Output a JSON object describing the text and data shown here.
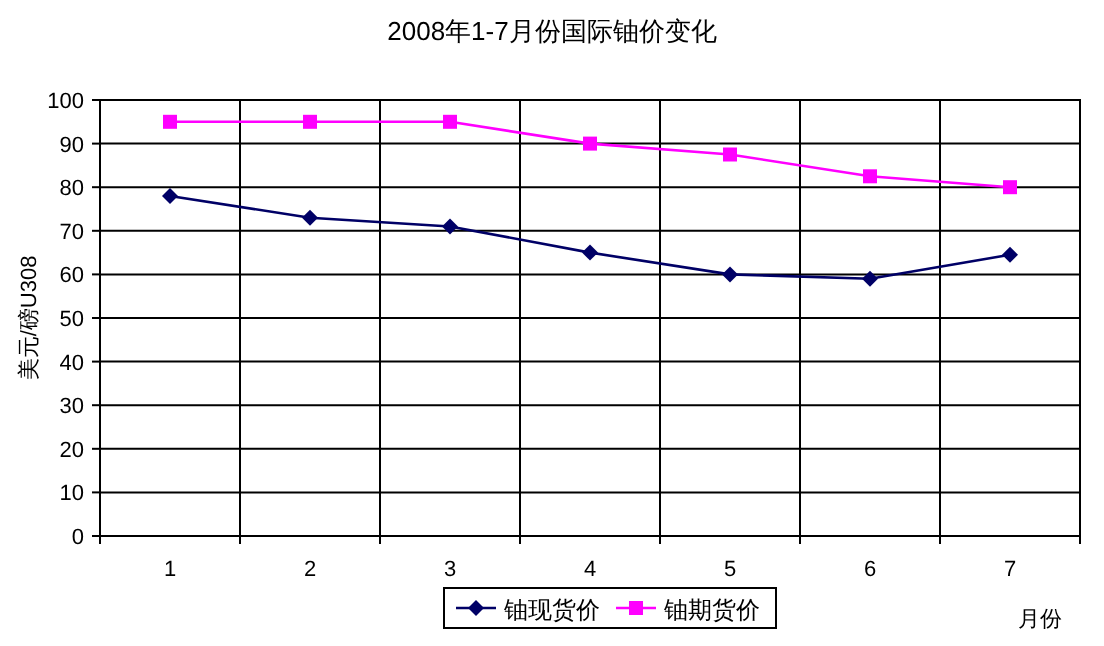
{
  "chart_data": {
    "type": "line",
    "title": "2008年1-7月份国际铀价变化",
    "ylabel": "美元/磅U308",
    "xlabel": "月份",
    "categories": [
      "1",
      "2",
      "3",
      "4",
      "5",
      "6",
      "7"
    ],
    "series": [
      {
        "name": "铀现货价",
        "color": "#000066",
        "marker": "diamond",
        "values": [
          78,
          73,
          71,
          65,
          60,
          59,
          64.5
        ]
      },
      {
        "name": "铀期货价",
        "color": "#ff00ff",
        "marker": "square",
        "values": [
          95,
          95,
          95,
          90,
          87.5,
          82.5,
          80
        ]
      }
    ],
    "ylim": [
      0,
      100
    ],
    "yticks": [
      0,
      10,
      20,
      30,
      40,
      50,
      60,
      70,
      80,
      90,
      100
    ],
    "grid": true,
    "legend": "bottom"
  }
}
